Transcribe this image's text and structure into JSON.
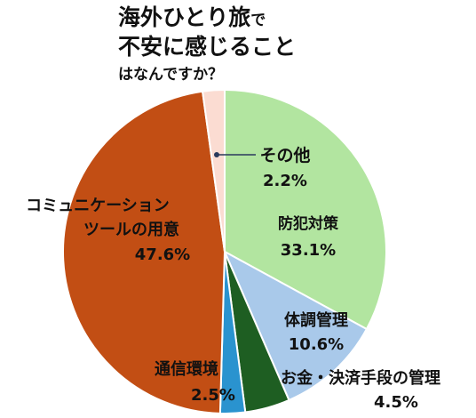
{
  "title": {
    "line1_main": "海外ひとり旅",
    "line1_small": "で",
    "line2": "不安に感じること",
    "line3": "はなんですか？"
  },
  "chart_data": {
    "type": "pie",
    "start": "12 o'clock",
    "direction": "clockwise",
    "slices": [
      {
        "label": "防犯対策",
        "value": 33.1,
        "value_label": "33.1%",
        "color": "#b2e5a0"
      },
      {
        "label": "体調管理",
        "value": 10.6,
        "value_label": "10.6%",
        "color": "#a9c9ea"
      },
      {
        "label": "お金・決済手段の管理",
        "value": 4.5,
        "value_label": "4.5%",
        "color": "#1e5e22"
      },
      {
        "label": "通信環境",
        "value": 2.5,
        "value_label": "2.5%",
        "color": "#2a93cf"
      },
      {
        "label": "コミュニケーションツールの用意",
        "label_lines": [
          "コミュニケーション",
          "ツールの用意"
        ],
        "value": 47.6,
        "value_label": "47.6%",
        "color": "#c24e14"
      },
      {
        "label": "その他",
        "value": 2.2,
        "value_label": "2.2%",
        "color": "#fbdcd2"
      }
    ],
    "colors": {
      "slice_border": "#ffffff",
      "leader_line": "#2a3a5c",
      "text": "#111111"
    }
  }
}
